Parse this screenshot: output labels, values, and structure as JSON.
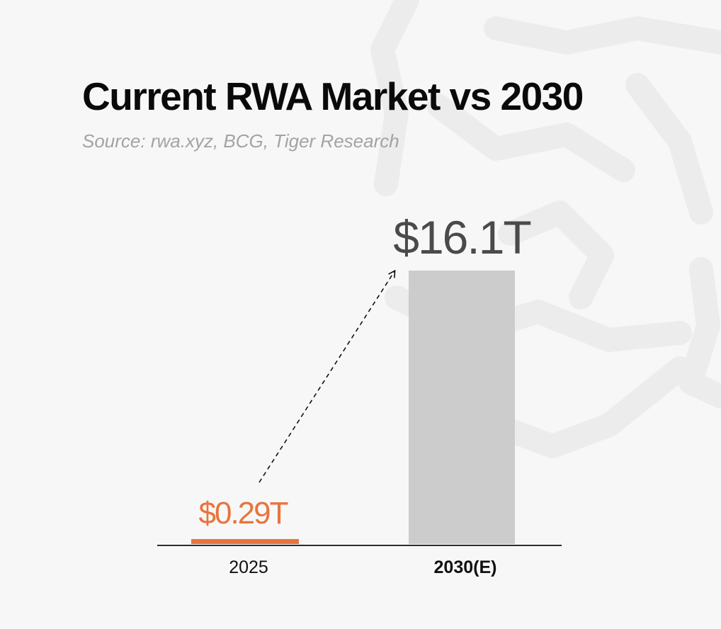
{
  "title": "Current RWA Market vs 2030",
  "subtitle": "Source: rwa.xyz, BCG, Tiger Research",
  "colors": {
    "background": "#f7f7f7",
    "highlight": "#e8743b",
    "muted_bar": "#cccccc",
    "value_label": "#4a4a4a",
    "watermark": "#ececec"
  },
  "icons": {
    "watermark": "tiger-logo-watermark"
  },
  "chart_data": {
    "type": "bar",
    "categories": [
      "2025",
      "2030(E)"
    ],
    "values": [
      0.29,
      16.1
    ],
    "value_labels": [
      "$0.29T",
      "$16.1T"
    ],
    "unit": "trillion USD",
    "bar_colors": [
      "#e8743b",
      "#cccccc"
    ],
    "label_colors": [
      "#e8743b",
      "#4a4a4a"
    ],
    "category_bold": [
      false,
      true
    ],
    "ylim": [
      0,
      16.1
    ],
    "grid": false,
    "legend": "none",
    "annotation": "dashed growth arrow from 2025 value to 2030(E) bar"
  }
}
